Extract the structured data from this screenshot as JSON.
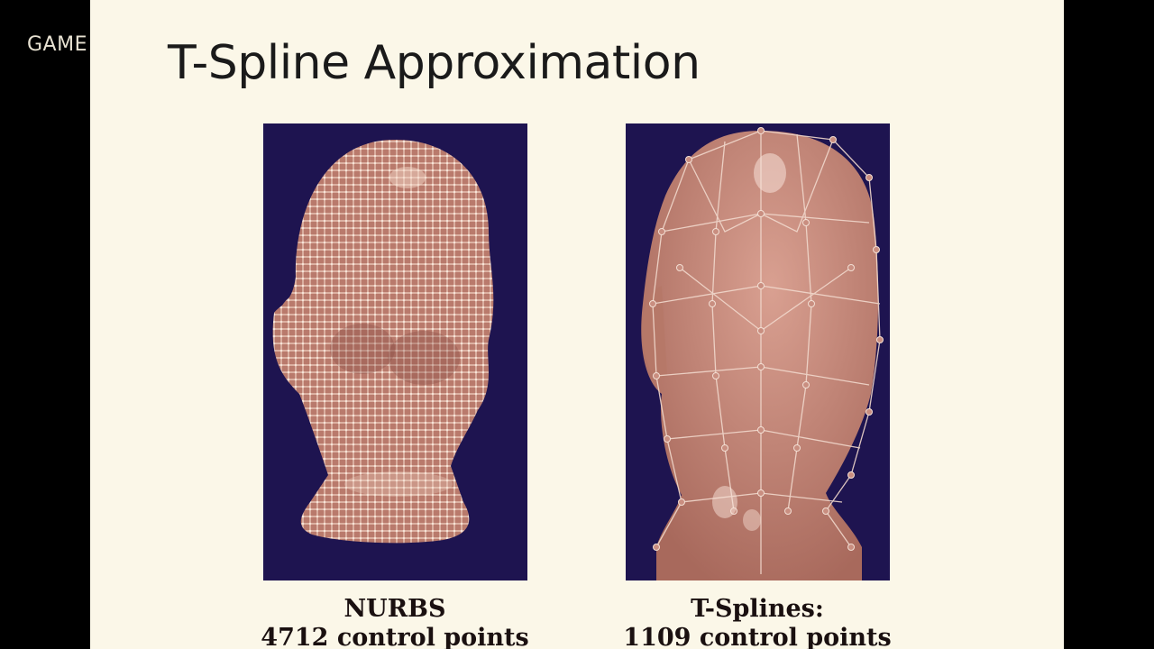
{
  "overlay": {
    "label": "GAME"
  },
  "slide": {
    "title": "T-Spline Approximation",
    "figures": [
      {
        "caption_line1": "NURBS",
        "caption_line2": "4712 control points",
        "icon": "nurbs-head-mesh"
      },
      {
        "caption_line1": "T-Splines:",
        "caption_line2": "1109 control points",
        "icon": "tspline-head-mesh"
      }
    ]
  },
  "colors": {
    "slide_bg": "#fbf7e8",
    "figure_bg": "#1e1450",
    "skin": "#c08070",
    "mesh": "#f3d8c8"
  }
}
